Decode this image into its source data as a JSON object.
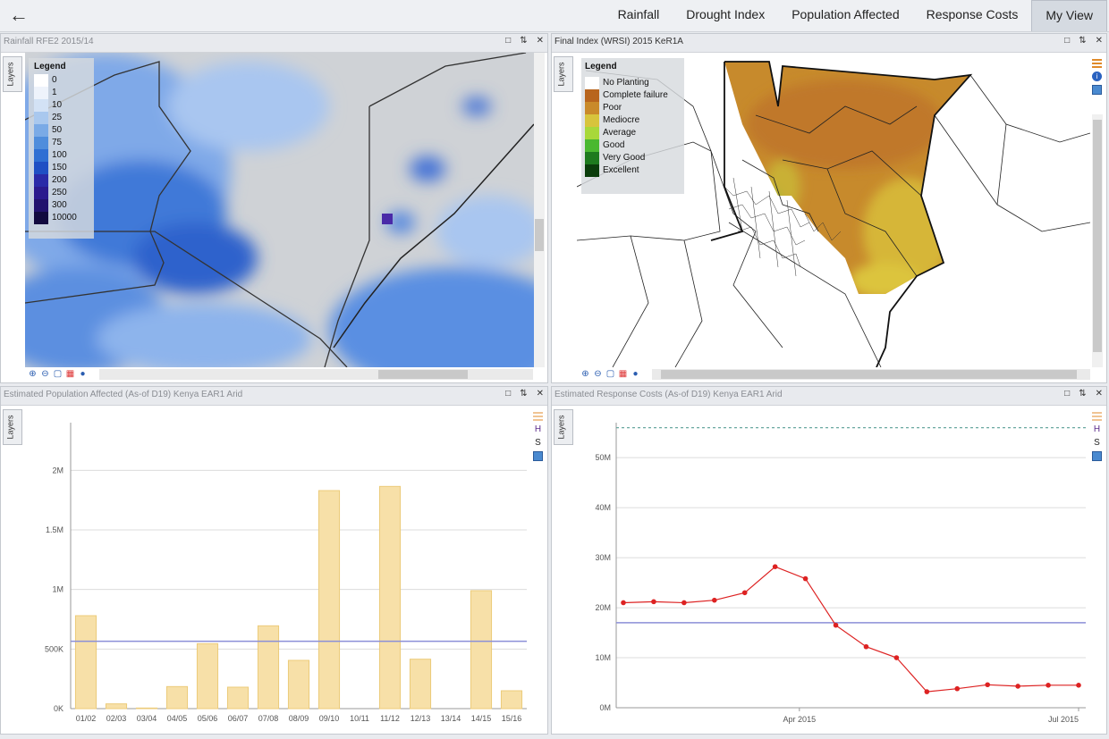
{
  "nav": {
    "back_icon": "arrow-left-icon",
    "tabs": [
      {
        "label": "Rainfall",
        "active": false
      },
      {
        "label": "Drought Index",
        "active": false
      },
      {
        "label": "Population Affected",
        "active": false
      },
      {
        "label": "Response Costs",
        "active": false
      },
      {
        "label": "My View",
        "active": true
      }
    ]
  },
  "panels": {
    "rainfall": {
      "title": "Rainfall RFE2 2015/14",
      "layers_label": "Layers",
      "legend_title": "Legend",
      "legend_items": [
        {
          "label": "0",
          "color": "#ffffff"
        },
        {
          "label": "1",
          "color": "#eef3fb"
        },
        {
          "label": "10",
          "color": "#d3e2f5"
        },
        {
          "label": "25",
          "color": "#a9c8ee"
        },
        {
          "label": "50",
          "color": "#7aaae6"
        },
        {
          "label": "75",
          "color": "#4f8ddc"
        },
        {
          "label": "100",
          "color": "#2f6fd3"
        },
        {
          "label": "150",
          "color": "#1f4fc4"
        },
        {
          "label": "200",
          "color": "#2a2aa8"
        },
        {
          "label": "250",
          "color": "#2b1a8e"
        },
        {
          "label": "300",
          "color": "#22126e"
        },
        {
          "label": "10000",
          "color": "#120a40"
        }
      ]
    },
    "wrsi": {
      "title": "Final Index (WRSI) 2015  KeR1A",
      "layers_label": "Layers",
      "legend_title": "Legend",
      "legend_items": [
        {
          "label": "No Planting",
          "color": "#ffffff"
        },
        {
          "label": "Complete failure",
          "color": "#b8651e"
        },
        {
          "label": "Poor",
          "color": "#c98a2a"
        },
        {
          "label": "Mediocre",
          "color": "#d7c43c"
        },
        {
          "label": "Average",
          "color": "#a8d83a"
        },
        {
          "label": "Good",
          "color": "#4ab830"
        },
        {
          "label": "Very Good",
          "color": "#1e7a1e"
        },
        {
          "label": "Excellent",
          "color": "#0b3d0b"
        }
      ]
    },
    "population": {
      "title": "Estimated Population Affected (As-of D19)    Kenya EAR1 Arid",
      "layers_label": "Layers",
      "tool_h": "H",
      "tool_s": "S"
    },
    "costs": {
      "title": "Estimated Response Costs (As-of D19)    Kenya EAR1 Arid",
      "layers_label": "Layers",
      "tool_h": "H",
      "tool_s": "S"
    }
  },
  "chart_data": [
    {
      "type": "bar",
      "title": "Estimated Population Affected (As-of D19)    Kenya EAR1 Arid",
      "categories": [
        "01/02",
        "02/03",
        "03/04",
        "04/05",
        "05/06",
        "06/07",
        "07/08",
        "08/09",
        "09/10",
        "10/11",
        "11/12",
        "12/13",
        "13/14",
        "14/15",
        "15/16"
      ],
      "values": [
        780000,
        40000,
        5000,
        185000,
        545000,
        180000,
        695000,
        405000,
        1830000,
        0,
        1865000,
        415000,
        0,
        990000,
        150000
      ],
      "ylim": [
        0,
        2400000
      ],
      "yticks": [
        {
          "v": 0,
          "label": "0K"
        },
        {
          "v": 500000,
          "label": "500K"
        },
        {
          "v": 1000000,
          "label": "1M"
        },
        {
          "v": 1500000,
          "label": "1.5M"
        },
        {
          "v": 2000000,
          "label": "2M"
        }
      ],
      "reference_line": 565000,
      "bar_color": "#f7e0a8",
      "bar_edge": "#eccb7a",
      "ref_color": "#8b8fd8",
      "grid": true
    },
    {
      "type": "line",
      "title": "Estimated Response Costs (As-of D19)    Kenya EAR1 Arid",
      "x": [
        0,
        1,
        2,
        3,
        4,
        5,
        6,
        7,
        8,
        9,
        10,
        11,
        12,
        13,
        14,
        15
      ],
      "values": [
        21000000,
        21200000,
        21000000,
        21500000,
        23000000,
        28200000,
        25800000,
        16500000,
        12200000,
        10000000,
        3200000,
        3800000,
        4600000,
        4300000,
        4500000,
        4500000
      ],
      "ylim": [
        0,
        57000000
      ],
      "yticks": [
        {
          "v": 0,
          "label": "0M"
        },
        {
          "v": 10000000,
          "label": "10M"
        },
        {
          "v": 20000000,
          "label": "20M"
        },
        {
          "v": 30000000,
          "label": "30M"
        },
        {
          "v": 40000000,
          "label": "40M"
        },
        {
          "v": 50000000,
          "label": "50M"
        }
      ],
      "xticks": [
        {
          "x": 5.8,
          "label": "Apr 2015"
        },
        {
          "x": 15,
          "label": "Jul 2015"
        }
      ],
      "reference_line": 17000000,
      "top_dashed_line": 56000000,
      "line_color": "#dd2222",
      "ref_color": "#8b8fd8",
      "dash_color": "#6aa8a0",
      "grid": true
    }
  ]
}
